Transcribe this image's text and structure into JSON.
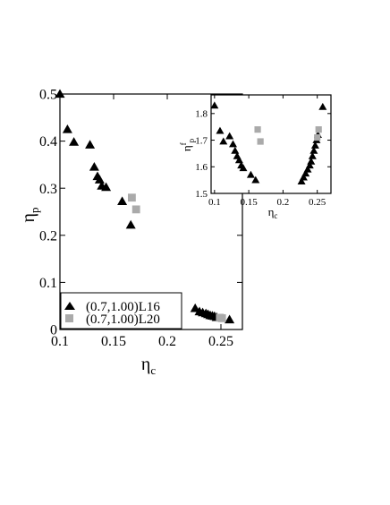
{
  "chart_data": [
    {
      "type": "scatter",
      "xlabel": "η",
      "xlabel_sub": "c",
      "ylabel": "η",
      "ylabel_sub": "p",
      "xlim": [
        0.1,
        0.27
      ],
      "ylim": [
        0,
        0.5
      ],
      "xticks": [
        "0.1",
        "0.15",
        "0.2",
        "0.25"
      ],
      "yticks": [
        "0",
        "0.1",
        "0.2",
        "0.3",
        "0.4",
        "0.5"
      ],
      "legend_position": "bottom-left",
      "series": [
        {
          "name": "(0.7,1.00)L16",
          "marker": "triangle",
          "color": "#000000",
          "points": [
            [
              0.1,
              0.5
            ],
            [
              0.107,
              0.425
            ],
            [
              0.113,
              0.398
            ],
            [
              0.128,
              0.392
            ],
            [
              0.132,
              0.345
            ],
            [
              0.135,
              0.325
            ],
            [
              0.137,
              0.318
            ],
            [
              0.139,
              0.305
            ],
            [
              0.143,
              0.302
            ],
            [
              0.158,
              0.272
            ],
            [
              0.166,
              0.222
            ],
            [
              0.226,
              0.045
            ],
            [
              0.23,
              0.038
            ],
            [
              0.233,
              0.036
            ],
            [
              0.236,
              0.034
            ],
            [
              0.238,
              0.032
            ],
            [
              0.24,
              0.03
            ],
            [
              0.242,
              0.029
            ],
            [
              0.244,
              0.028
            ],
            [
              0.246,
              0.026
            ],
            [
              0.258,
              0.021
            ]
          ]
        },
        {
          "name": "(0.7,1.00)L20",
          "marker": "square",
          "color": "#aaaaaa",
          "points": [
            [
              0.167,
              0.28
            ],
            [
              0.171,
              0.255
            ],
            [
              0.249,
              0.025
            ],
            [
              0.251,
              0.024
            ]
          ]
        }
      ]
    },
    {
      "type": "scatter",
      "inset": true,
      "xlabel": "η",
      "xlabel_sub": "c",
      "ylabel": "η",
      "ylabel_sub": "p",
      "ylabel_sup": "f",
      "xlim": [
        0.095,
        0.27
      ],
      "ylim": [
        1.5,
        1.87
      ],
      "xticks": [
        "0.1",
        "0.15",
        "0.2",
        "0.25"
      ],
      "yticks": [
        "1.5",
        "1.6",
        "1.7",
        "1.8"
      ],
      "series": [
        {
          "name": "(0.7,1.00)L16",
          "marker": "triangle",
          "color": "#000000",
          "points": [
            [
              0.1,
              1.83
            ],
            [
              0.108,
              1.735
            ],
            [
              0.113,
              1.695
            ],
            [
              0.122,
              1.715
            ],
            [
              0.127,
              1.685
            ],
            [
              0.13,
              1.66
            ],
            [
              0.133,
              1.64
            ],
            [
              0.136,
              1.625
            ],
            [
              0.139,
              1.605
            ],
            [
              0.142,
              1.595
            ],
            [
              0.153,
              1.57
            ],
            [
              0.16,
              1.55
            ],
            [
              0.227,
              1.545
            ],
            [
              0.23,
              1.56
            ],
            [
              0.233,
              1.575
            ],
            [
              0.236,
              1.59
            ],
            [
              0.239,
              1.605
            ],
            [
              0.241,
              1.62
            ],
            [
              0.243,
              1.64
            ],
            [
              0.245,
              1.66
            ],
            [
              0.247,
              1.68
            ],
            [
              0.249,
              1.7
            ],
            [
              0.251,
              1.72
            ],
            [
              0.258,
              1.825
            ]
          ]
        },
        {
          "name": "(0.7,1.00)L20",
          "marker": "square",
          "color": "#aaaaaa",
          "points": [
            [
              0.163,
              1.74
            ],
            [
              0.167,
              1.695
            ],
            [
              0.25,
              1.71
            ],
            [
              0.252,
              1.74
            ]
          ]
        }
      ]
    }
  ]
}
